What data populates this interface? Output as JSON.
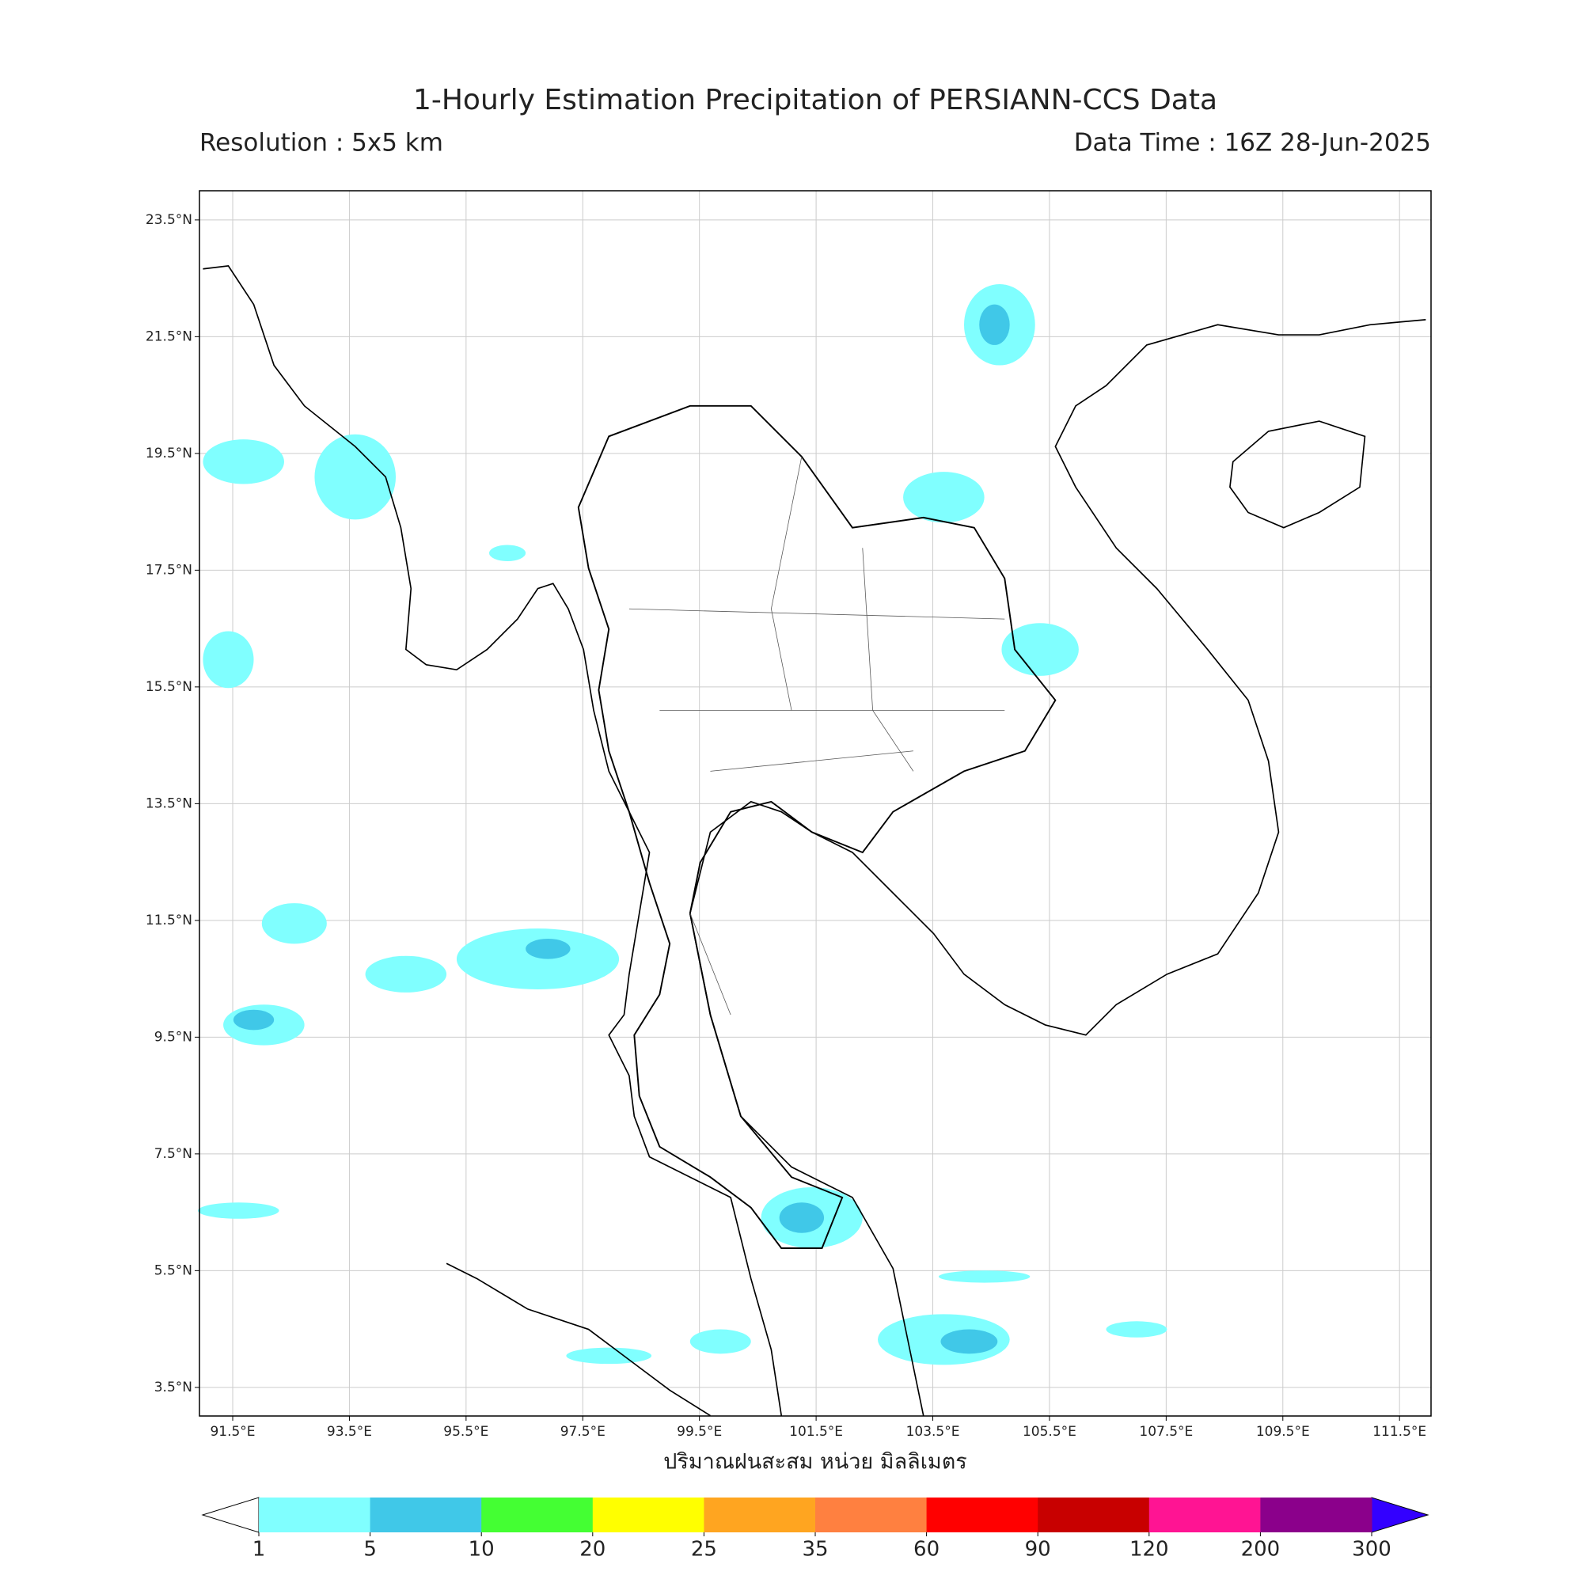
{
  "title": "1-Hourly Estimation Precipitation of PERSIANN-CCS Data",
  "resolution": "Resolution : 5x5 km",
  "data_time": "Data Time : 16Z 28-Jun-2025",
  "map": {
    "xlim": [
      90.93,
      112.04
    ],
    "ylim": [
      3.01,
      24.0
    ],
    "grid": true,
    "xticks": [
      {
        "value": 91.5,
        "label": "91.5°E"
      },
      {
        "value": 93.5,
        "label": "93.5°E"
      },
      {
        "value": 95.5,
        "label": "95.5°E"
      },
      {
        "value": 97.5,
        "label": "97.5°E"
      },
      {
        "value": 99.5,
        "label": "99.5°E"
      },
      {
        "value": 101.5,
        "label": "101.5°E"
      },
      {
        "value": 103.5,
        "label": "103.5°E"
      },
      {
        "value": 105.5,
        "label": "105.5°E"
      },
      {
        "value": 107.5,
        "label": "107.5°E"
      },
      {
        "value": 109.5,
        "label": "109.5°E"
      },
      {
        "value": 111.5,
        "label": "111.5°E"
      }
    ],
    "yticks": [
      {
        "value": 3.5,
        "label": "3.5°N"
      },
      {
        "value": 5.5,
        "label": "5.5°N"
      },
      {
        "value": 7.5,
        "label": "7.5°N"
      },
      {
        "value": 9.5,
        "label": "9.5°N"
      },
      {
        "value": 11.5,
        "label": "11.5°N"
      },
      {
        "value": 13.5,
        "label": "13.5°N"
      },
      {
        "value": 15.5,
        "label": "15.5°N"
      },
      {
        "value": 17.5,
        "label": "17.5°N"
      },
      {
        "value": 19.5,
        "label": "19.5°N"
      },
      {
        "value": 21.5,
        "label": "21.5°N"
      },
      {
        "value": 23.5,
        "label": "23.5°N"
      }
    ]
  },
  "colorbar": {
    "label": "ปริมาณฝนสะสม หน่วย มิลลิเมตร",
    "boundaries": [
      1,
      5,
      10,
      20,
      25,
      35,
      60,
      90,
      120,
      200,
      300
    ],
    "colors": [
      "#80ffff",
      "#40c8e8",
      "#44ff33",
      "#ffff00",
      "#ffa520",
      "#ff8040",
      "#ff0000",
      "#c80000",
      "#ff1493",
      "#8b008b"
    ],
    "under_color": "#ffffff",
    "over_color": "#3300ff"
  }
}
